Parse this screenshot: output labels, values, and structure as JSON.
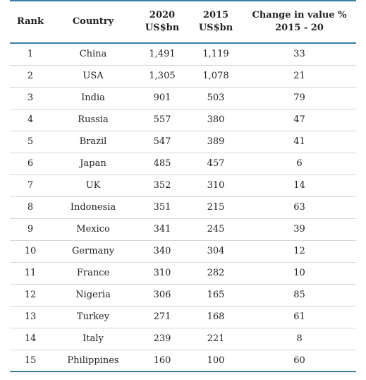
{
  "table": {
    "headers": {
      "rank": "Rank",
      "country": "Country",
      "v2020_line1": "2020",
      "v2020_line2": "US$bn",
      "v2015_line1": "2015",
      "v2015_line2": "US$bn",
      "change_line1": "Change in value %",
      "change_line2": "2015 - 20"
    },
    "rows": [
      {
        "rank": "1",
        "country": "China",
        "v2020": "1,491",
        "v2015": "1,119",
        "change": "33"
      },
      {
        "rank": "2",
        "country": "USA",
        "v2020": "1,305",
        "v2015": "1,078",
        "change": "21"
      },
      {
        "rank": "3",
        "country": "India",
        "v2020": "901",
        "v2015": "503",
        "change": "79"
      },
      {
        "rank": "4",
        "country": "Russia",
        "v2020": "557",
        "v2015": "380",
        "change": "47"
      },
      {
        "rank": "5",
        "country": "Brazil",
        "v2020": "547",
        "v2015": "389",
        "change": "41"
      },
      {
        "rank": "6",
        "country": "Japan",
        "v2020": "485",
        "v2015": "457",
        "change": "6"
      },
      {
        "rank": "7",
        "country": "UK",
        "v2020": "352",
        "v2015": "310",
        "change": "14"
      },
      {
        "rank": "8",
        "country": "Indonesia",
        "v2020": "351",
        "v2015": "215",
        "change": "63"
      },
      {
        "rank": "9",
        "country": "Mexico",
        "v2020": "341",
        "v2015": "245",
        "change": "39"
      },
      {
        "rank": "10",
        "country": "Germany",
        "v2020": "340",
        "v2015": "304",
        "change": "12"
      },
      {
        "rank": "11",
        "country": "France",
        "v2020": "310",
        "v2015": "282",
        "change": "10"
      },
      {
        "rank": "12",
        "country": "Nigeria",
        "v2020": "306",
        "v2015": "165",
        "change": "85"
      },
      {
        "rank": "13",
        "country": "Turkey",
        "v2020": "271",
        "v2015": "168",
        "change": "61"
      },
      {
        "rank": "14",
        "country": "Italy",
        "v2020": "239",
        "v2015": "221",
        "change": "8"
      },
      {
        "rank": "15",
        "country": "Philippines",
        "v2020": "160",
        "v2015": "100",
        "change": "60"
      }
    ]
  },
  "colors": {
    "rule_accent": "#3a7fa8",
    "row_divider": "#d8d8d8",
    "text": "#222222"
  }
}
